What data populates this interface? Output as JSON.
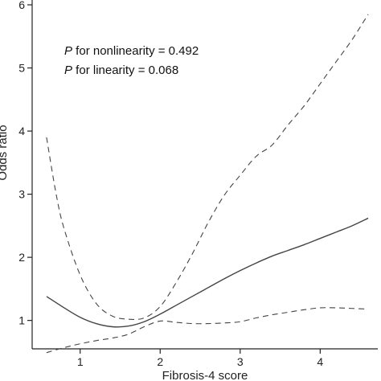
{
  "chart_data": {
    "type": "line",
    "title": "",
    "xlabel": "Fibrosis-4 score",
    "ylabel": "Odds ratio",
    "xlim": [
      0.4,
      4.72
    ],
    "ylim": [
      0.55,
      6.0
    ],
    "x_ticks": [
      1,
      2,
      3,
      4
    ],
    "y_ticks": [
      1,
      2,
      3,
      4,
      5,
      6
    ],
    "grid": false,
    "legend": "none",
    "annotations": [
      {
        "prefix": "P",
        "text": " for nonlinearity = 0.492"
      },
      {
        "prefix": "P",
        "text": " for linearity = 0.068"
      }
    ],
    "series": [
      {
        "role": "estimate",
        "style": "solid",
        "color": "#444444",
        "x": [
          0.58,
          0.8,
          1.0,
          1.2,
          1.4,
          1.6,
          1.8,
          2.0,
          2.2,
          2.4,
          2.6,
          2.8,
          3.0,
          3.2,
          3.4,
          3.6,
          3.8,
          4.0,
          4.2,
          4.4,
          4.6
        ],
        "y": [
          1.38,
          1.2,
          1.05,
          0.95,
          0.9,
          0.91,
          0.98,
          1.1,
          1.24,
          1.38,
          1.52,
          1.66,
          1.79,
          1.91,
          2.02,
          2.11,
          2.2,
          2.3,
          2.4,
          2.5,
          2.62
        ]
      },
      {
        "role": "upper-ci",
        "style": "dashed",
        "color": "#444444",
        "x": [
          0.58,
          0.7,
          0.8,
          1.0,
          1.2,
          1.4,
          1.6,
          1.8,
          2.0,
          2.2,
          2.4,
          2.6,
          2.8,
          3.0,
          3.2,
          3.4,
          3.6,
          3.8,
          4.0,
          4.2,
          4.4,
          4.6
        ],
        "y": [
          3.9,
          3.0,
          2.45,
          1.72,
          1.27,
          1.07,
          1.02,
          1.04,
          1.22,
          1.6,
          2.05,
          2.55,
          2.98,
          3.3,
          3.6,
          3.78,
          4.1,
          4.4,
          4.75,
          5.1,
          5.45,
          5.85
        ]
      },
      {
        "role": "lower-ci",
        "style": "dashed",
        "color": "#444444",
        "x": [
          0.58,
          0.8,
          1.0,
          1.2,
          1.4,
          1.6,
          1.8,
          2.0,
          2.2,
          2.4,
          2.6,
          2.8,
          3.0,
          3.2,
          3.4,
          3.6,
          3.8,
          4.0,
          4.2,
          4.4,
          4.6
        ],
        "y": [
          0.49,
          0.57,
          0.63,
          0.68,
          0.72,
          0.78,
          0.9,
          0.99,
          0.97,
          0.95,
          0.95,
          0.96,
          0.98,
          1.04,
          1.09,
          1.13,
          1.17,
          1.2,
          1.2,
          1.19,
          1.18
        ]
      }
    ]
  }
}
